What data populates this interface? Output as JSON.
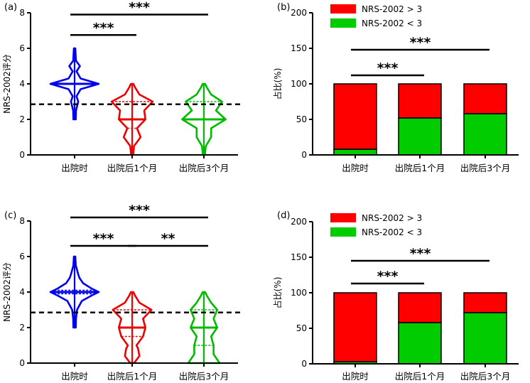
{
  "chart_data": [
    {
      "panel": "(a)",
      "type": "violin",
      "ylabel": "NRS-2002评分",
      "ylim": [
        0,
        8
      ],
      "yticks": [
        0,
        2,
        4,
        6,
        8
      ],
      "categories": [
        "出院时",
        "出院后1个月",
        "出院后3个月"
      ],
      "colors": [
        "#0000ee",
        "#ee0000",
        "#00bb00"
      ],
      "reference_line": 2.85,
      "violins": [
        {
          "profile": [
            [
              2,
              0.05
            ],
            [
              2.5,
              0.06
            ],
            [
              3,
              0.15
            ],
            [
              3.3,
              0.08
            ],
            [
              3.7,
              0.25
            ],
            [
              4,
              1.0
            ],
            [
              4.3,
              0.25
            ],
            [
              4.7,
              0.08
            ],
            [
              5,
              0.22
            ],
            [
              5.3,
              0.06
            ],
            [
              5.7,
              0.04
            ],
            [
              6,
              0.03
            ]
          ],
          "quartiles": [
            4,
            4,
            4
          ]
        },
        {
          "profile": [
            [
              0,
              0.04
            ],
            [
              0.5,
              0.08
            ],
            [
              1,
              0.35
            ],
            [
              1.5,
              0.2
            ],
            [
              2,
              0.55
            ],
            [
              2.5,
              0.5
            ],
            [
              3,
              0.85
            ],
            [
              3.4,
              0.3
            ],
            [
              3.8,
              0.12
            ],
            [
              4,
              0.05
            ]
          ],
          "quartiles": [
            1.5,
            2,
            3
          ]
        },
        {
          "profile": [
            [
              0,
              0.04
            ],
            [
              0.5,
              0.08
            ],
            [
              1,
              0.3
            ],
            [
              1.5,
              0.3
            ],
            [
              2,
              0.9
            ],
            [
              2.5,
              0.5
            ],
            [
              3,
              0.75
            ],
            [
              3.4,
              0.3
            ],
            [
              3.8,
              0.12
            ],
            [
              4,
              0.05
            ]
          ],
          "quartiles": [
            2,
            2,
            3
          ]
        }
      ],
      "significance": [
        {
          "from": 0,
          "to": 1,
          "y": 6.75,
          "label": "***"
        },
        {
          "from": 0,
          "to": 2,
          "y": 7.9,
          "label": "***"
        }
      ]
    },
    {
      "panel": "(b)",
      "type": "stacked-bar",
      "ylabel": "占比(%)",
      "ylim": [
        0,
        200
      ],
      "yticks": [
        0,
        50,
        100,
        150,
        200
      ],
      "categories": [
        "出院时",
        "出院后1个月",
        "出院后3个月"
      ],
      "series": [
        {
          "name": "NRS-2002 < 3",
          "color": "#00cc00",
          "values": [
            8,
            52,
            58
          ]
        },
        {
          "name": "NRS-2002 > 3",
          "color": "#ff0000",
          "values": [
            92,
            48,
            42
          ]
        }
      ],
      "legend": [
        "NRS-2002 > 3",
        "NRS-2002 < 3"
      ],
      "significance": [
        {
          "from": 0,
          "to": 1,
          "y": 112,
          "label": "***"
        },
        {
          "from": 0,
          "to": 2,
          "y": 148,
          "label": "***"
        }
      ]
    },
    {
      "panel": "(c)",
      "type": "violin",
      "ylabel": "NRS-2002评分",
      "ylim": [
        0,
        8
      ],
      "yticks": [
        0,
        2,
        4,
        6,
        8
      ],
      "categories": [
        "出院时",
        "出院后1个月",
        "出院后3个月"
      ],
      "colors": [
        "#0000ee",
        "#ee0000",
        "#00bb00"
      ],
      "reference_line": 2.85,
      "violins": [
        {
          "profile": [
            [
              2,
              0.05
            ],
            [
              2.5,
              0.06
            ],
            [
              3,
              0.1
            ],
            [
              3.5,
              0.3
            ],
            [
              3.8,
              0.7
            ],
            [
              4,
              1.0
            ],
            [
              4.2,
              0.7
            ],
            [
              4.5,
              0.35
            ],
            [
              4.8,
              0.2
            ],
            [
              5,
              0.15
            ],
            [
              5.5,
              0.05
            ],
            [
              6,
              0.03
            ]
          ],
          "quartiles": [
            3.9,
            4,
            4.1
          ]
        },
        {
          "profile": [
            [
              0,
              0.08
            ],
            [
              0.4,
              0.3
            ],
            [
              0.8,
              0.25
            ],
            [
              1,
              0.18
            ],
            [
              1.5,
              0.45
            ],
            [
              2,
              0.55
            ],
            [
              2.5,
              0.45
            ],
            [
              3,
              0.8
            ],
            [
              3.4,
              0.3
            ],
            [
              3.8,
              0.12
            ],
            [
              4,
              0.05
            ]
          ],
          "quartiles": [
            1.5,
            2,
            3
          ]
        },
        {
          "profile": [
            [
              0,
              0.65
            ],
            [
              0.5,
              0.4
            ],
            [
              1,
              0.4
            ],
            [
              1.5,
              0.3
            ],
            [
              2,
              0.55
            ],
            [
              2.5,
              0.4
            ],
            [
              3,
              0.55
            ],
            [
              3.4,
              0.3
            ],
            [
              3.8,
              0.12
            ],
            [
              4,
              0.05
            ]
          ],
          "quartiles": [
            1,
            2,
            3
          ]
        }
      ],
      "significance": [
        {
          "from": 0,
          "to": 1,
          "y": 6.6,
          "label": "***"
        },
        {
          "from": 1,
          "to": 2,
          "y": 6.6,
          "label": "**"
        },
        {
          "from": 0,
          "to": 2,
          "y": 8.2,
          "label": "***"
        }
      ]
    },
    {
      "panel": "(d)",
      "type": "stacked-bar",
      "ylabel": "占比(%)",
      "ylim": [
        0,
        200
      ],
      "yticks": [
        0,
        50,
        100,
        150,
        200
      ],
      "categories": [
        "出院时",
        "出院后1个月",
        "出院后3个月"
      ],
      "series": [
        {
          "name": "NRS-2002 < 3",
          "color": "#00cc00",
          "values": [
            3,
            58,
            72
          ]
        },
        {
          "name": "NRS-2002 > 3",
          "color": "#ff0000",
          "values": [
            97,
            42,
            28
          ]
        }
      ],
      "legend": [
        "NRS-2002 > 3",
        "NRS-2002 < 3"
      ],
      "significance": [
        {
          "from": 0,
          "to": 1,
          "y": 113,
          "label": "***"
        },
        {
          "from": 0,
          "to": 2,
          "y": 145,
          "label": "***"
        }
      ]
    }
  ]
}
